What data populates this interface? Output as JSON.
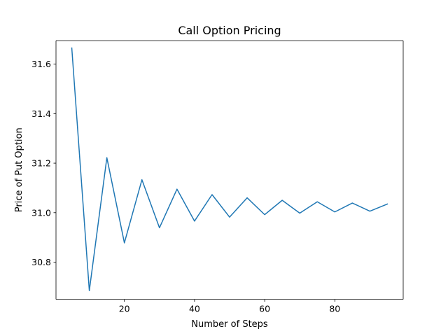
{
  "chart_data": {
    "type": "line",
    "title": "Call Option Pricing",
    "xlabel": "Number of Steps",
    "ylabel": "Price of Put Option",
    "xlim": [
      0.5,
      99.5
    ],
    "ylim": [
      30.65,
      31.695
    ],
    "xticks": [
      20,
      40,
      60,
      80
    ],
    "yticks": [
      30.8,
      31.0,
      31.2,
      31.4,
      31.6
    ],
    "grid": false,
    "series": [
      {
        "color": "#1f77b4",
        "x": [
          5,
          10,
          15,
          20,
          25,
          30,
          35,
          40,
          45,
          50,
          55,
          60,
          65,
          70,
          75,
          80,
          85,
          90,
          95
        ],
        "y": [
          31.665,
          30.685,
          31.222,
          30.878,
          31.133,
          30.939,
          31.095,
          30.966,
          31.073,
          30.982,
          31.06,
          30.992,
          31.05,
          30.998,
          31.044,
          31.003,
          31.039,
          31.006,
          31.035
        ]
      }
    ]
  }
}
